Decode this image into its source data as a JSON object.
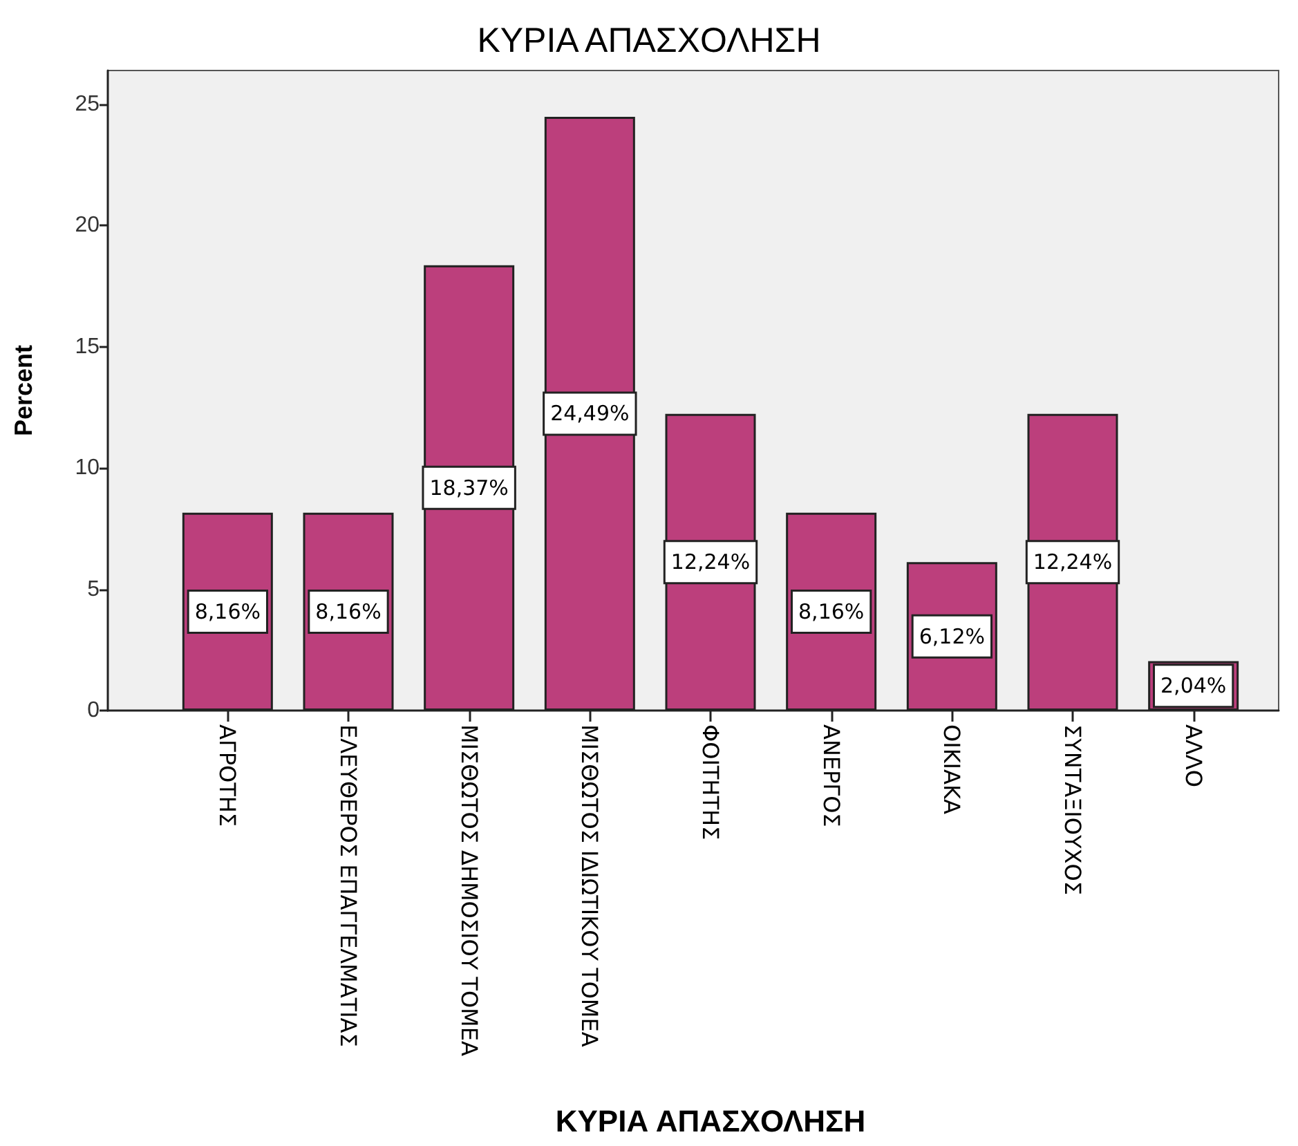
{
  "chart_data": {
    "type": "bar",
    "title": "ΚΥΡΙΑ ΑΠΑΣΧΟΛΗΣΗ",
    "xlabel": "ΚΥΡΙΑ ΑΠΑΣΧΟΛΗΣΗ",
    "ylabel": "Percent",
    "categories": [
      "ΑΓΡΟΤΗΣ",
      "ΕΛΕΥΘΕΡΟΣ ΕΠΑΓΓΕΛΜΑΤΙΑΣ",
      "ΜΙΣΘΩΤΟΣ ΔΗΜΟΣΙΟΥ ΤΟΜΕΑ",
      "ΜΙΣΘΩΤΟΣ ΙΔΙΩΤΙΚΟΥ ΤΟΜΕΑ",
      "ΦΟΙΤΗΤΗΣ",
      "ΑΝΕΡΓΟΣ",
      "ΟΙΚΙΑΚΑ",
      "ΣΥΝΤΑΞΙΟΥΧΟΣ",
      "ΑΛΛΟ"
    ],
    "values": [
      8.16,
      8.16,
      18.37,
      24.49,
      12.24,
      8.16,
      6.12,
      12.24,
      2.04
    ],
    "value_labels": [
      "8,16%",
      "8,16%",
      "18,37%",
      "24,49%",
      "12,24%",
      "8,16%",
      "6,12%",
      "12,24%",
      "2,04%"
    ],
    "color": "#bc3f7c",
    "ylim": [
      0,
      26.4
    ],
    "yticks": [
      0,
      5,
      10,
      15,
      20,
      25
    ]
  }
}
